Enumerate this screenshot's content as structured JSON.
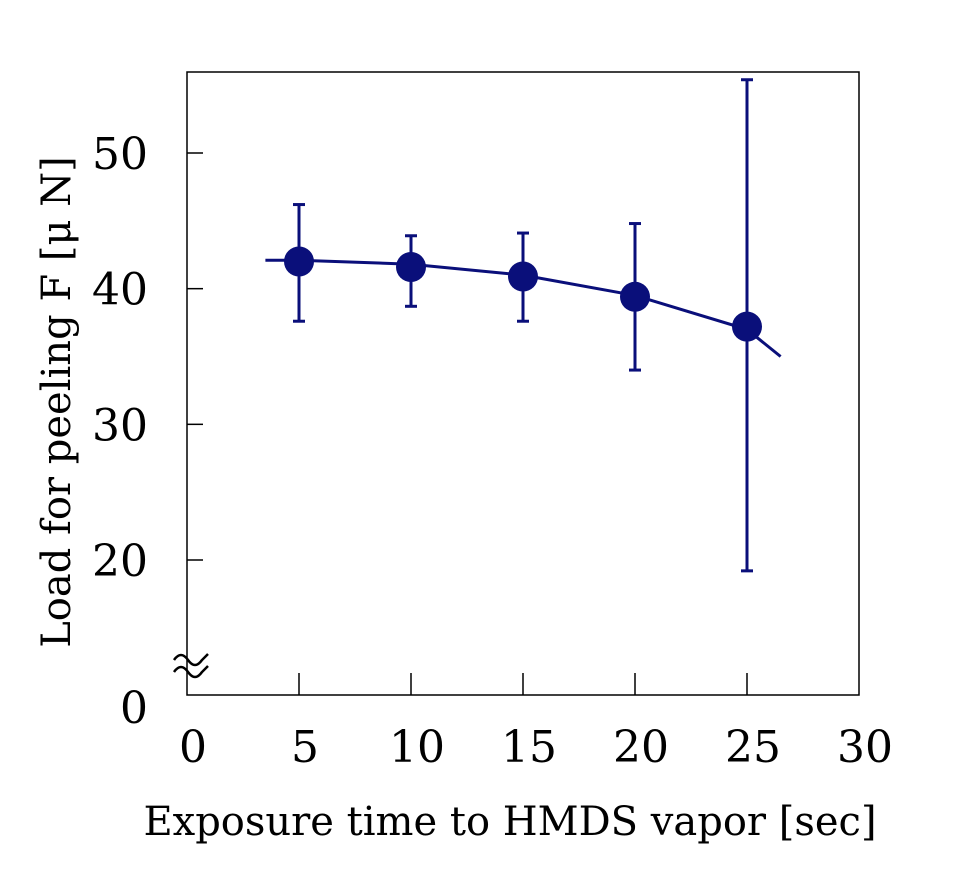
{
  "chart_data": {
    "type": "scatter",
    "title": "",
    "xlabel": "Exposure time to HMDS vapor [sec]",
    "ylabel": "Load for peeling F [μ N]",
    "xlim": [
      0,
      30
    ],
    "ylim": [
      0,
      55
    ],
    "y_axis_break": true,
    "grid": false,
    "legend": null,
    "x_ticks": [
      0,
      5,
      10,
      15,
      20,
      25,
      30
    ],
    "y_ticks": [
      0,
      20,
      30,
      40,
      50
    ],
    "series": [
      {
        "name": "Load for peeling",
        "color": "#0a0f7a",
        "marker": "filled-circle",
        "x": [
          5,
          10,
          15,
          20,
          25
        ],
        "y": [
          42.0,
          41.6,
          40.9,
          39.4,
          37.2
        ],
        "error_upper": [
          46.2,
          43.9,
          44.1,
          44.8,
          55.4
        ],
        "error_lower": [
          37.6,
          38.7,
          37.6,
          34.0,
          19.2
        ]
      }
    ],
    "trend_line": {
      "color": "#0a0f7a",
      "x": [
        3.5,
        5,
        10,
        15,
        20,
        25,
        26.5
      ],
      "y": [
        42.1,
        42.1,
        41.8,
        41.0,
        39.5,
        37.0,
        35.0
      ]
    }
  },
  "labels": {
    "xlabel": "Exposure time to HMDS vapor [sec]",
    "ylabel": "Load for peeling F [μ N]",
    "x_ticks": [
      "0",
      "5",
      "10",
      "15",
      "20",
      "25",
      "30"
    ],
    "y_ticks": [
      "0",
      "20",
      "30",
      "40",
      "50"
    ],
    "break_symbol": "≈"
  }
}
